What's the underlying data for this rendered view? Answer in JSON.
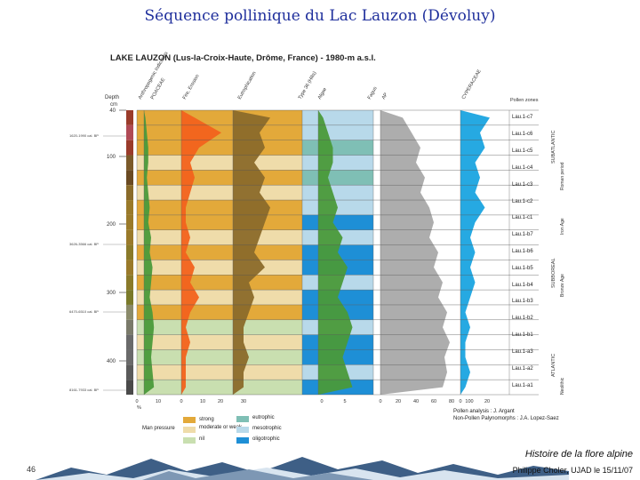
{
  "slide": {
    "title": "Séquence pollinique du Lac Lauzon (Dévoluy)",
    "footer_title": "Histoire de la flore alpine",
    "footer_sub": "Philippe Choler, UJAD le 15/11/07",
    "page_number": "46"
  },
  "chart_data": {
    "type": "area",
    "title": "LAKE LAUZON  (Lus-la-Croix-Haute, Drôme, France) - 1980-m a.s.l.",
    "depth_axis": {
      "label": "Depth",
      "unit": "cm",
      "ticks": [
        "40",
        "100",
        "200",
        "300",
        "400"
      ]
    },
    "column_labels": [
      "Anthropogenic Indicators",
      "POACEAE",
      "Fire, Erosion",
      "Eutrophication",
      "Type 36 (Hilis)",
      "Algae",
      "Fagus",
      "AP",
      "CYPERACEAE"
    ],
    "x_ticks": [
      "0",
      "10",
      "0",
      "10",
      "20",
      "30",
      "0",
      "5",
      "0",
      "20",
      "40",
      "60",
      "80",
      "100",
      "0",
      "20"
    ],
    "percent_label": "%",
    "pollen_zones_title": "Pollen zones",
    "pollen_zones": [
      "Lau.1-c7",
      "Lau.1-c6",
      "Lau.1-c5",
      "Lau.1-c4",
      "Lau.1-c3",
      "Lau.1-c2",
      "Lau.1-c1",
      "Lau.1-b7",
      "Lau.1-b6",
      "Lau.1-b5",
      "Lau.1-b4",
      "Lau.1-b3",
      "Lau.1-b2",
      "Lau.1-b1",
      "Lau.1-a3",
      "Lau.1-a2",
      "Lau.1-a1"
    ],
    "periods": [
      "SUBATLANTIC",
      "SUBBOREAL",
      "ATLANTIC"
    ],
    "cultural_periods": [
      "Roman period",
      "Iron Age",
      "Bronze Age",
      "Neolithic"
    ],
    "dates": [
      "1620-1990 cal. BP",
      "3626-3566 cal. BP",
      "6470-6510 cal. BP",
      "8161-7933 cal. BP"
    ],
    "curves": {
      "fire": [
        0.3,
        0.9,
        0.4,
        0.2,
        0.3,
        0.2,
        0.1,
        0.1,
        0.2,
        0.1,
        0.3,
        0.2,
        0.4,
        0.2,
        0.1,
        0.2,
        0.1,
        0.1,
        0.1
      ],
      "eutrophication": [
        0.7,
        0.5,
        0.6,
        0.4,
        0.6,
        0.5,
        0.7,
        0.6,
        0.5,
        0.4,
        0.6,
        0.3,
        0.4,
        0.3,
        0.2,
        0.2,
        0.3,
        0.2,
        0.2
      ],
      "algae": [
        0.1,
        0.2,
        0.3,
        0.3,
        0.2,
        0.3,
        0.4,
        0.3,
        0.5,
        0.4,
        0.6,
        0.5,
        0.4,
        0.6,
        0.7,
        0.6,
        0.5,
        0.6,
        0.7
      ],
      "ap": [
        0.25,
        0.35,
        0.45,
        0.4,
        0.5,
        0.45,
        0.55,
        0.6,
        0.55,
        0.65,
        0.6,
        0.7,
        0.65,
        0.75,
        0.7,
        0.78,
        0.72,
        0.75,
        0.7
      ],
      "cyperaceae": [
        0.6,
        0.4,
        0.5,
        0.3,
        0.4,
        0.3,
        0.5,
        0.3,
        0.2,
        0.3,
        0.2,
        0.3,
        0.2,
        0.1,
        0.2,
        0.1,
        0.1,
        0.2,
        0.1
      ]
    },
    "legend": {
      "human_pressure_title": "Man pressure",
      "human_pressure": [
        "strong",
        "moderate or weak",
        "nil"
      ],
      "trophic": [
        "eutrophic",
        "mesotrophic",
        "oligotrophic"
      ]
    },
    "credits": [
      "Pollen analysis : J. Argant",
      "Non-Pollen Palynomorphs : J.A. Lopez-Saez"
    ],
    "colors": {
      "strong": "#e3a93a",
      "moderate": "#efdcaa",
      "nil": "#c9dfb0",
      "eutrophic": "#7fbfb5",
      "mesotrophic": "#b8d9ea",
      "oligotrophic": "#1e8fd6",
      "fire": "#f2621c",
      "green": "#4a9a3a",
      "ap": "#a9a9a9",
      "cyper": "#1aa4e0"
    }
  }
}
